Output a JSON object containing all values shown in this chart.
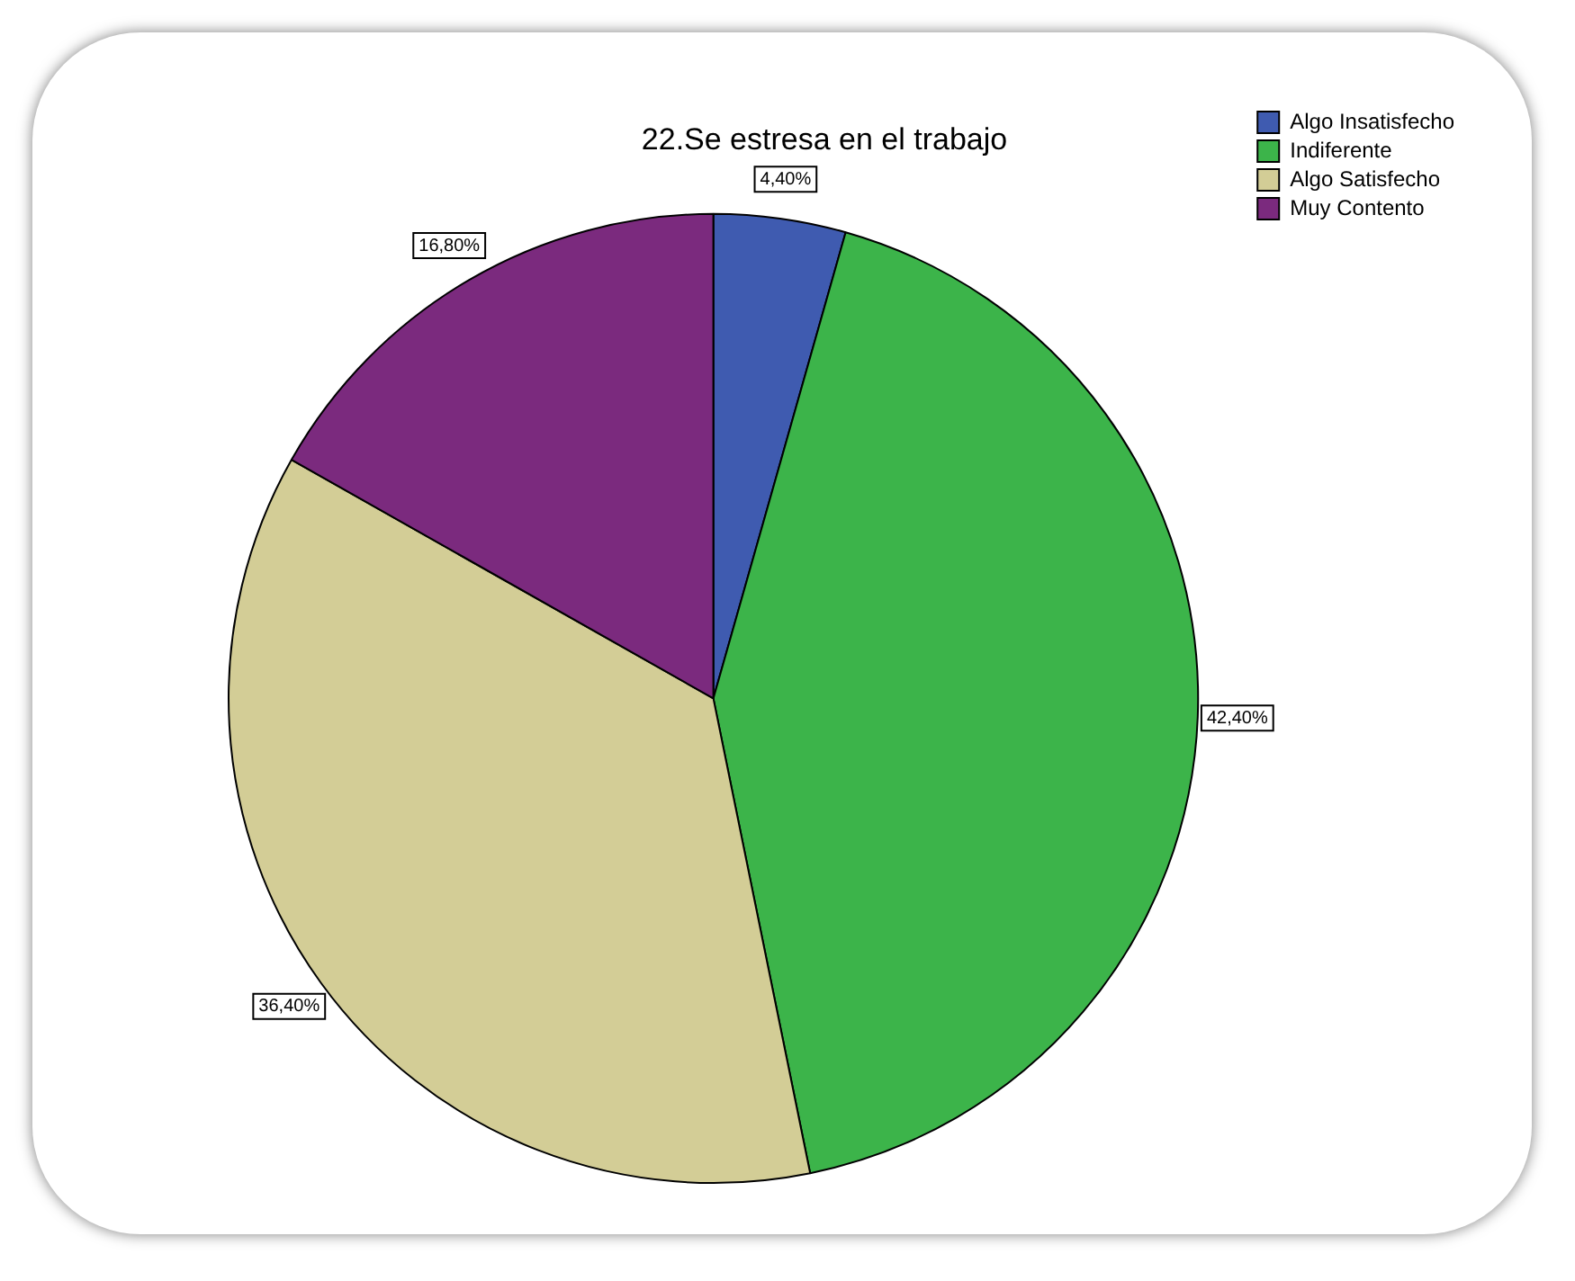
{
  "chart_data": {
    "type": "pie",
    "title": "22.Se estresa en el trabajo",
    "categories": [
      "Algo Insatisfecho",
      "Indiferente",
      "Algo Satisfecho",
      "Muy Contento"
    ],
    "values": [
      4.4,
      42.4,
      36.4,
      16.8
    ],
    "colors": [
      "#3f5bb0",
      "#3cb44a",
      "#d3cd96",
      "#7b2a7e"
    ],
    "value_labels": [
      "4,40%",
      "42,40%",
      "36,40%",
      "16,80%"
    ],
    "legend": "top right"
  }
}
